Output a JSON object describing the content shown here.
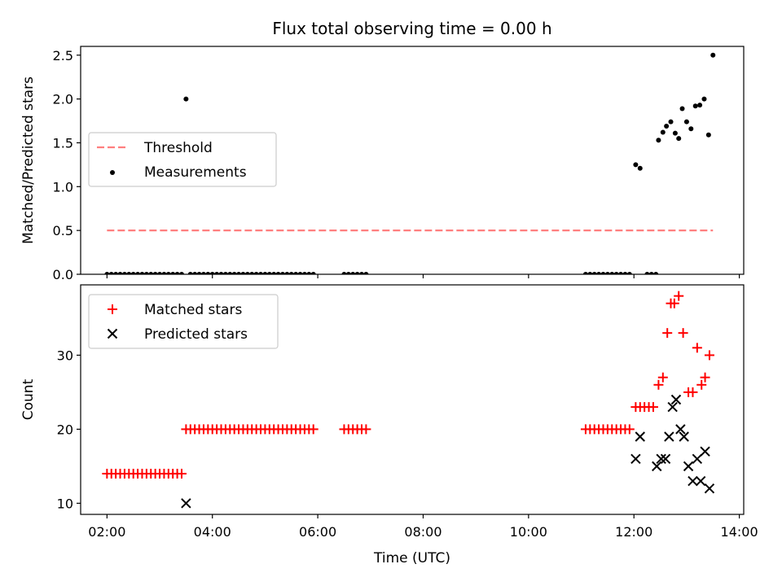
{
  "chart_data": {
    "type": "scatter",
    "title": "Flux total observing time = 0.00 h",
    "xlabel": "Time (UTC)",
    "x_ticks": [
      "02:00",
      "04:00",
      "06:00",
      "08:00",
      "10:00",
      "12:00",
      "14:00"
    ],
    "xlim": [
      "01:30",
      "14:05"
    ],
    "panels": [
      {
        "ylabel": "Matched/Predicted stars",
        "ylim": [
          0,
          2.6
        ],
        "y_ticks": [
          "0.0",
          "0.5",
          "1.0",
          "1.5",
          "2.0",
          "2.5"
        ],
        "legend_position": "center-left",
        "series": [
          {
            "name": "Threshold",
            "style": "dashed-line",
            "color": "#ff7f7f",
            "points": [
              [
                "02:00",
                0.5
              ],
              [
                "13:30",
                0.5
              ]
            ]
          },
          {
            "name": "Measurements",
            "style": "dots",
            "color": "#000000",
            "points": [
              [
                "02:00",
                0
              ],
              [
                "02:05",
                0
              ],
              [
                "02:10",
                0
              ],
              [
                "02:15",
                0
              ],
              [
                "02:20",
                0
              ],
              [
                "02:25",
                0
              ],
              [
                "02:30",
                0
              ],
              [
                "02:35",
                0
              ],
              [
                "02:40",
                0
              ],
              [
                "02:45",
                0
              ],
              [
                "02:50",
                0
              ],
              [
                "02:55",
                0
              ],
              [
                "03:00",
                0
              ],
              [
                "03:05",
                0
              ],
              [
                "03:10",
                0
              ],
              [
                "03:15",
                0
              ],
              [
                "03:20",
                0
              ],
              [
                "03:25",
                0
              ],
              [
                "03:30",
                2.0
              ],
              [
                "03:35",
                0
              ],
              [
                "03:40",
                0
              ],
              [
                "03:45",
                0
              ],
              [
                "03:50",
                0
              ],
              [
                "03:55",
                0
              ],
              [
                "04:00",
                0
              ],
              [
                "04:05",
                0
              ],
              [
                "04:10",
                0
              ],
              [
                "04:15",
                0
              ],
              [
                "04:20",
                0
              ],
              [
                "04:25",
                0
              ],
              [
                "04:30",
                0
              ],
              [
                "04:35",
                0
              ],
              [
                "04:40",
                0
              ],
              [
                "04:45",
                0
              ],
              [
                "04:50",
                0
              ],
              [
                "04:55",
                0
              ],
              [
                "05:00",
                0
              ],
              [
                "05:05",
                0
              ],
              [
                "05:10",
                0
              ],
              [
                "05:15",
                0
              ],
              [
                "05:20",
                0
              ],
              [
                "05:25",
                0
              ],
              [
                "05:30",
                0
              ],
              [
                "05:35",
                0
              ],
              [
                "05:40",
                0
              ],
              [
                "05:45",
                0
              ],
              [
                "05:50",
                0
              ],
              [
                "05:55",
                0
              ],
              [
                "06:30",
                0
              ],
              [
                "06:35",
                0
              ],
              [
                "06:40",
                0
              ],
              [
                "06:45",
                0
              ],
              [
                "06:50",
                0
              ],
              [
                "06:55",
                0
              ],
              [
                "11:05",
                0
              ],
              [
                "11:10",
                0
              ],
              [
                "11:15",
                0
              ],
              [
                "11:20",
                0
              ],
              [
                "11:25",
                0
              ],
              [
                "11:30",
                0
              ],
              [
                "11:35",
                0
              ],
              [
                "11:40",
                0
              ],
              [
                "11:45",
                0
              ],
              [
                "11:50",
                0
              ],
              [
                "11:55",
                0
              ],
              [
                "12:02",
                1.25
              ],
              [
                "12:07",
                1.21
              ],
              [
                "12:15",
                0
              ],
              [
                "12:20",
                0
              ],
              [
                "12:25",
                0
              ],
              [
                "12:28",
                1.53
              ],
              [
                "12:33",
                1.62
              ],
              [
                "12:37",
                1.69
              ],
              [
                "12:42",
                1.74
              ],
              [
                "12:47",
                1.61
              ],
              [
                "12:51",
                1.55
              ],
              [
                "12:55",
                1.89
              ],
              [
                "13:00",
                1.74
              ],
              [
                "13:05",
                1.66
              ],
              [
                "13:10",
                1.92
              ],
              [
                "13:15",
                1.93
              ],
              [
                "13:20",
                2.0
              ],
              [
                "13:25",
                1.59
              ],
              [
                "13:30",
                2.5
              ]
            ]
          }
        ]
      },
      {
        "ylabel": "Count",
        "ylim": [
          8.5,
          39.5
        ],
        "y_ticks": [
          "10",
          "20",
          "30"
        ],
        "legend_position": "top-left",
        "series": [
          {
            "name": "Matched stars",
            "style": "plus",
            "color": "#ff0000",
            "points": [
              [
                "02:00",
                14
              ],
              [
                "02:05",
                14
              ],
              [
                "02:10",
                14
              ],
              [
                "02:15",
                14
              ],
              [
                "02:20",
                14
              ],
              [
                "02:25",
                14
              ],
              [
                "02:30",
                14
              ],
              [
                "02:35",
                14
              ],
              [
                "02:40",
                14
              ],
              [
                "02:45",
                14
              ],
              [
                "02:50",
                14
              ],
              [
                "02:55",
                14
              ],
              [
                "03:00",
                14
              ],
              [
                "03:05",
                14
              ],
              [
                "03:10",
                14
              ],
              [
                "03:15",
                14
              ],
              [
                "03:20",
                14
              ],
              [
                "03:25",
                14
              ],
              [
                "03:30",
                20
              ],
              [
                "03:35",
                20
              ],
              [
                "03:40",
                20
              ],
              [
                "03:45",
                20
              ],
              [
                "03:50",
                20
              ],
              [
                "03:55",
                20
              ],
              [
                "04:00",
                20
              ],
              [
                "04:05",
                20
              ],
              [
                "04:10",
                20
              ],
              [
                "04:15",
                20
              ],
              [
                "04:20",
                20
              ],
              [
                "04:25",
                20
              ],
              [
                "04:30",
                20
              ],
              [
                "04:35",
                20
              ],
              [
                "04:40",
                20
              ],
              [
                "04:45",
                20
              ],
              [
                "04:50",
                20
              ],
              [
                "04:55",
                20
              ],
              [
                "05:00",
                20
              ],
              [
                "05:05",
                20
              ],
              [
                "05:10",
                20
              ],
              [
                "05:15",
                20
              ],
              [
                "05:20",
                20
              ],
              [
                "05:25",
                20
              ],
              [
                "05:30",
                20
              ],
              [
                "05:35",
                20
              ],
              [
                "05:40",
                20
              ],
              [
                "05:45",
                20
              ],
              [
                "05:50",
                20
              ],
              [
                "05:55",
                20
              ],
              [
                "06:30",
                20
              ],
              [
                "06:35",
                20
              ],
              [
                "06:40",
                20
              ],
              [
                "06:45",
                20
              ],
              [
                "06:50",
                20
              ],
              [
                "06:55",
                20
              ],
              [
                "11:05",
                20
              ],
              [
                "11:10",
                20
              ],
              [
                "11:15",
                20
              ],
              [
                "11:20",
                20
              ],
              [
                "11:25",
                20
              ],
              [
                "11:30",
                20
              ],
              [
                "11:35",
                20
              ],
              [
                "11:40",
                20
              ],
              [
                "11:45",
                20
              ],
              [
                "11:50",
                20
              ],
              [
                "11:55",
                20
              ],
              [
                "12:02",
                23
              ],
              [
                "12:07",
                23
              ],
              [
                "12:12",
                23
              ],
              [
                "12:17",
                23
              ],
              [
                "12:22",
                23
              ],
              [
                "12:28",
                26
              ],
              [
                "12:33",
                27
              ],
              [
                "12:38",
                33
              ],
              [
                "12:42",
                37
              ],
              [
                "12:46",
                37
              ],
              [
                "12:51",
                38
              ],
              [
                "12:56",
                33
              ],
              [
                "13:02",
                25
              ],
              [
                "13:07",
                25
              ],
              [
                "13:12",
                31
              ],
              [
                "13:17",
                26
              ],
              [
                "13:21",
                27
              ],
              [
                "13:26",
                30
              ]
            ]
          },
          {
            "name": "Predicted stars",
            "style": "x",
            "color": "#000000",
            "points": [
              [
                "03:30",
                10
              ],
              [
                "12:02",
                16
              ],
              [
                "12:07",
                19
              ],
              [
                "12:26",
                15
              ],
              [
                "12:31",
                16
              ],
              [
                "12:36",
                16
              ],
              [
                "12:40",
                19
              ],
              [
                "12:44",
                23
              ],
              [
                "12:48",
                24
              ],
              [
                "12:53",
                20
              ],
              [
                "12:57",
                19
              ],
              [
                "13:02",
                15
              ],
              [
                "13:07",
                13
              ],
              [
                "13:12",
                16
              ],
              [
                "13:16",
                13
              ],
              [
                "13:21",
                17
              ],
              [
                "13:26",
                12
              ]
            ]
          }
        ]
      }
    ]
  }
}
